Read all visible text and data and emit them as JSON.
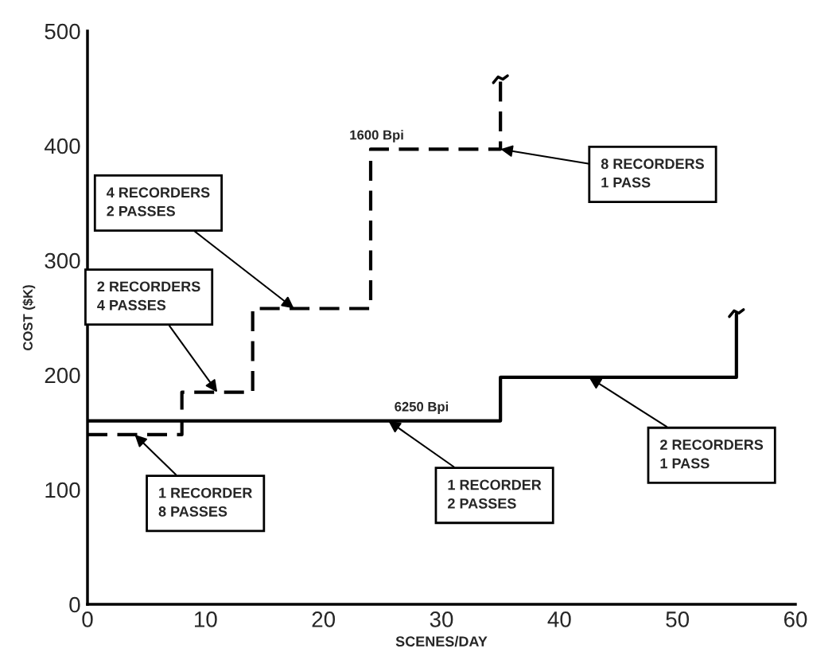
{
  "chart_data": {
    "type": "step",
    "xlabel": "SCENES/DAY",
    "ylabel": "COST ($K)",
    "xlim": [
      0,
      60
    ],
    "xticks": [
      0,
      10,
      20,
      30,
      40,
      50,
      60
    ],
    "ylim": [
      0,
      500
    ],
    "yticks": [
      0,
      100,
      200,
      300,
      400,
      500
    ],
    "grid": false,
    "legend": false,
    "series": [
      {
        "name": "1600 Bpi",
        "color": "#000000",
        "line_style": "dashed",
        "x": [
          0,
          8,
          14,
          24,
          35,
          35
        ],
        "values": [
          148,
          185,
          258,
          397,
          397,
          457
        ]
      },
      {
        "name": "6250 Bpi",
        "color": "#000000",
        "line_style": "solid",
        "x": [
          0,
          35,
          55,
          55
        ],
        "values": [
          160,
          198,
          198,
          253
        ]
      }
    ],
    "annotations": [
      {
        "text": "4 RECORDERS\n2 PASSES",
        "x": 17.5,
        "y": 258
      },
      {
        "text": "2 RECORDERS\n4 PASSES",
        "x": 11,
        "y": 185
      },
      {
        "text": "1 RECORDER\n8 PASSES",
        "x": 4,
        "y": 148
      },
      {
        "text": "8 RECORDERS\n1 PASS",
        "x": 35,
        "y": 397
      },
      {
        "text": "1 RECORDER\n2 PASSES",
        "x": 25.5,
        "y": 160
      },
      {
        "text": "2 RECORDERS\n1 PASS",
        "x": 42.5,
        "y": 198
      }
    ]
  }
}
